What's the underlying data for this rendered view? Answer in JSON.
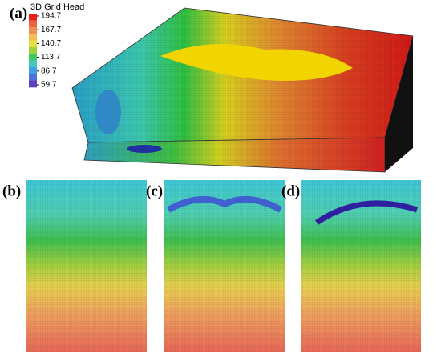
{
  "panels": [
    "(a)",
    "(b)",
    "(c)",
    "(d)"
  ],
  "legend": {
    "title": "3D Grid Head",
    "ticks": [
      194.7,
      167.7,
      140.7,
      113.7,
      86.7,
      59.7
    ]
  }
}
